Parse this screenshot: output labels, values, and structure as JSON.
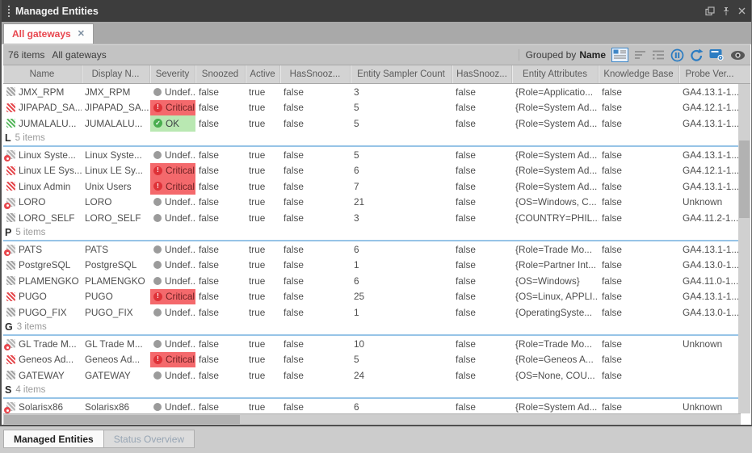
{
  "window": {
    "title": "Managed Entities",
    "controls": [
      "float-icon",
      "pin-icon",
      "close-icon"
    ]
  },
  "tab_strip": {
    "active_tab": {
      "label": "All gateways",
      "close_glyph": "✕"
    }
  },
  "toolbar": {
    "items_count": "76 items",
    "view_name": "All gateways",
    "grouped_by_label": "Grouped by",
    "grouped_by_value": "Name",
    "icons": [
      "grouping-panel-icon",
      "sort-icon",
      "group-columns-icon",
      "pause-icon",
      "refresh-icon",
      "settings-icon",
      "visibility-icon"
    ]
  },
  "table": {
    "columns": [
      {
        "key": "name",
        "label": "Name"
      },
      {
        "key": "display-name",
        "label": "Display N..."
      },
      {
        "key": "severity",
        "label": "Severity"
      },
      {
        "key": "snoozed",
        "label": "Snoozed"
      },
      {
        "key": "active",
        "label": "Active"
      },
      {
        "key": "has-snoozed-1",
        "label": "HasSnooz..."
      },
      {
        "key": "entity-sampler-count",
        "label": "Entity Sampler Count"
      },
      {
        "key": "has-snoozed-2",
        "label": "HasSnooz..."
      },
      {
        "key": "entity-attributes",
        "label": "Entity Attributes"
      },
      {
        "key": "knowledge-base",
        "label": "Knowledge Base"
      },
      {
        "key": "probe-version",
        "label": "Probe Ver..."
      }
    ],
    "rows": [
      {
        "type": "row",
        "icon": "gray-striped",
        "name": "JMX_RPM",
        "display": "JMX_RPM",
        "sev": "undefined",
        "sev_label": "Undef...",
        "snoozed": "false",
        "active": "true",
        "has1": "false",
        "count": "3",
        "has2": "false",
        "attrs": "{Role=Applicatio...",
        "kb": "false",
        "probe": "GA4.13.1-1..."
      },
      {
        "type": "row",
        "icon": "red-striped",
        "name": "JIPAPAD_SA...",
        "display": "JIPAPAD_SA...",
        "sev": "critical",
        "sev_label": "Critical",
        "snoozed": "false",
        "active": "true",
        "has1": "false",
        "count": "5",
        "has2": "false",
        "attrs": "{Role=System Ad...",
        "kb": "false",
        "probe": "GA4.12.1-1..."
      },
      {
        "type": "row",
        "icon": "green-striped",
        "name": "JUMALALU...",
        "display": "JUMALALU...",
        "sev": "ok",
        "sev_label": "OK",
        "snoozed": "false",
        "active": "true",
        "has1": "false",
        "count": "5",
        "has2": "false",
        "attrs": "{Role=System Ad...",
        "kb": "false",
        "probe": "GA4.13.1-1..."
      },
      {
        "type": "group",
        "letter": "L",
        "items": "5 items"
      },
      {
        "type": "row",
        "icon": "gray-dot",
        "name": "Linux Syste...",
        "display": "Linux Syste...",
        "sev": "undefined",
        "sev_label": "Undef...",
        "snoozed": "false",
        "active": "true",
        "has1": "false",
        "count": "5",
        "has2": "false",
        "attrs": "{Role=System Ad...",
        "kb": "false",
        "probe": "GA4.13.1-1..."
      },
      {
        "type": "row",
        "icon": "red-striped",
        "name": "Linux LE Sys...",
        "display": "Linux LE Sy...",
        "sev": "critical",
        "sev_label": "Critical",
        "snoozed": "false",
        "active": "true",
        "has1": "false",
        "count": "6",
        "has2": "false",
        "attrs": "{Role=System Ad...",
        "kb": "false",
        "probe": "GA4.12.1-1..."
      },
      {
        "type": "row",
        "icon": "red-striped",
        "name": "Linux Admin",
        "display": "Unix Users",
        "sev": "critical",
        "sev_label": "Critical",
        "snoozed": "false",
        "active": "true",
        "has1": "false",
        "count": "7",
        "has2": "false",
        "attrs": "{Role=System Ad...",
        "kb": "false",
        "probe": "GA4.13.1-1..."
      },
      {
        "type": "row",
        "icon": "gray-dot",
        "name": "LORO",
        "display": "LORO",
        "sev": "undefined",
        "sev_label": "Undef...",
        "snoozed": "false",
        "active": "true",
        "has1": "false",
        "count": "21",
        "has2": "false",
        "attrs": "{OS=Windows, C...",
        "kb": "false",
        "probe": "Unknown"
      },
      {
        "type": "row",
        "icon": "gray-striped",
        "name": "LORO_SELF",
        "display": "LORO_SELF",
        "sev": "undefined",
        "sev_label": "Undef...",
        "snoozed": "false",
        "active": "true",
        "has1": "false",
        "count": "3",
        "has2": "false",
        "attrs": "{COUNTRY=PHIL...",
        "kb": "false",
        "probe": "GA4.11.2-1..."
      },
      {
        "type": "group",
        "letter": "P",
        "items": "5 items"
      },
      {
        "type": "row",
        "icon": "gray-dot",
        "name": "PATS",
        "display": "PATS",
        "sev": "undefined",
        "sev_label": "Undef...",
        "snoozed": "false",
        "active": "true",
        "has1": "false",
        "count": "6",
        "has2": "false",
        "attrs": "{Role=Trade Mo...",
        "kb": "false",
        "probe": "GA4.13.1-1..."
      },
      {
        "type": "row",
        "icon": "gray-striped",
        "name": "PostgreSQL",
        "display": "PostgreSQL",
        "sev": "undefined",
        "sev_label": "Undef...",
        "snoozed": "false",
        "active": "true",
        "has1": "false",
        "count": "1",
        "has2": "false",
        "attrs": "{Role=Partner Int...",
        "kb": "false",
        "probe": "GA4.13.0-1..."
      },
      {
        "type": "row",
        "icon": "gray-striped",
        "name": "PLAMENGKO",
        "display": "PLAMENGKO",
        "sev": "undefined",
        "sev_label": "Undef...",
        "snoozed": "false",
        "active": "true",
        "has1": "false",
        "count": "6",
        "has2": "false",
        "attrs": "{OS=Windows}",
        "kb": "false",
        "probe": "GA4.11.0-1..."
      },
      {
        "type": "row",
        "icon": "red-striped",
        "name": "PUGO",
        "display": "PUGO",
        "sev": "critical",
        "sev_label": "Critical",
        "snoozed": "false",
        "active": "true",
        "has1": "false",
        "count": "25",
        "has2": "false",
        "attrs": "{OS=Linux, APPLI...",
        "kb": "false",
        "probe": "GA4.13.1-1..."
      },
      {
        "type": "row",
        "icon": "gray-striped",
        "name": "PUGO_FIX",
        "display": "PUGO_FIX",
        "sev": "undefined",
        "sev_label": "Undef...",
        "snoozed": "false",
        "active": "true",
        "has1": "false",
        "count": "1",
        "has2": "false",
        "attrs": "{OperatingSyste...",
        "kb": "false",
        "probe": "GA4.13.0-1..."
      },
      {
        "type": "group",
        "letter": "G",
        "items": "3 items"
      },
      {
        "type": "row",
        "icon": "gray-dot",
        "name": "GL Trade M...",
        "display": "GL Trade M...",
        "sev": "undefined",
        "sev_label": "Undef...",
        "snoozed": "false",
        "active": "true",
        "has1": "false",
        "count": "10",
        "has2": "false",
        "attrs": "{Role=Trade Mo...",
        "kb": "false",
        "probe": "Unknown"
      },
      {
        "type": "row",
        "icon": "red-striped",
        "name": "Geneos Ad...",
        "display": "Geneos Ad...",
        "sev": "critical",
        "sev_label": "Critical",
        "snoozed": "false",
        "active": "true",
        "has1": "false",
        "count": "5",
        "has2": "false",
        "attrs": "{Role=Geneos A...",
        "kb": "false",
        "probe": ""
      },
      {
        "type": "row",
        "icon": "gray-striped",
        "name": "GATEWAY",
        "display": "GATEWAY",
        "sev": "undefined",
        "sev_label": "Undef...",
        "snoozed": "false",
        "active": "true",
        "has1": "false",
        "count": "24",
        "has2": "false",
        "attrs": "{OS=None, COU...",
        "kb": "false",
        "probe": ""
      },
      {
        "type": "group",
        "letter": "S",
        "items": "4 items"
      },
      {
        "type": "row",
        "icon": "gray-dot",
        "name": "Solarisx86",
        "display": "Solarisx86",
        "sev": "undefined",
        "sev_label": "Undef...",
        "snoozed": "false",
        "active": "true",
        "has1": "false",
        "count": "6",
        "has2": "false",
        "attrs": "{Role=System Ad...",
        "kb": "false",
        "probe": "Unknown"
      }
    ]
  },
  "dock_tabs": [
    {
      "label": "Managed Entities",
      "active": true
    },
    {
      "label": "Status Overview",
      "active": false
    }
  ],
  "colors": {
    "critical_bg": "#f4696c",
    "critical_dot": "#de3238",
    "ok_bg": "#b9e8b2",
    "ok_dot": "#49ae4f",
    "undefined_dot": "#9b9b9b",
    "tab_text": "#e8464e",
    "group_underline": "#97c4e7",
    "titlebar_bg": "#3d3d3d",
    "toolbar_icon_blue": "#2b7cc2"
  }
}
